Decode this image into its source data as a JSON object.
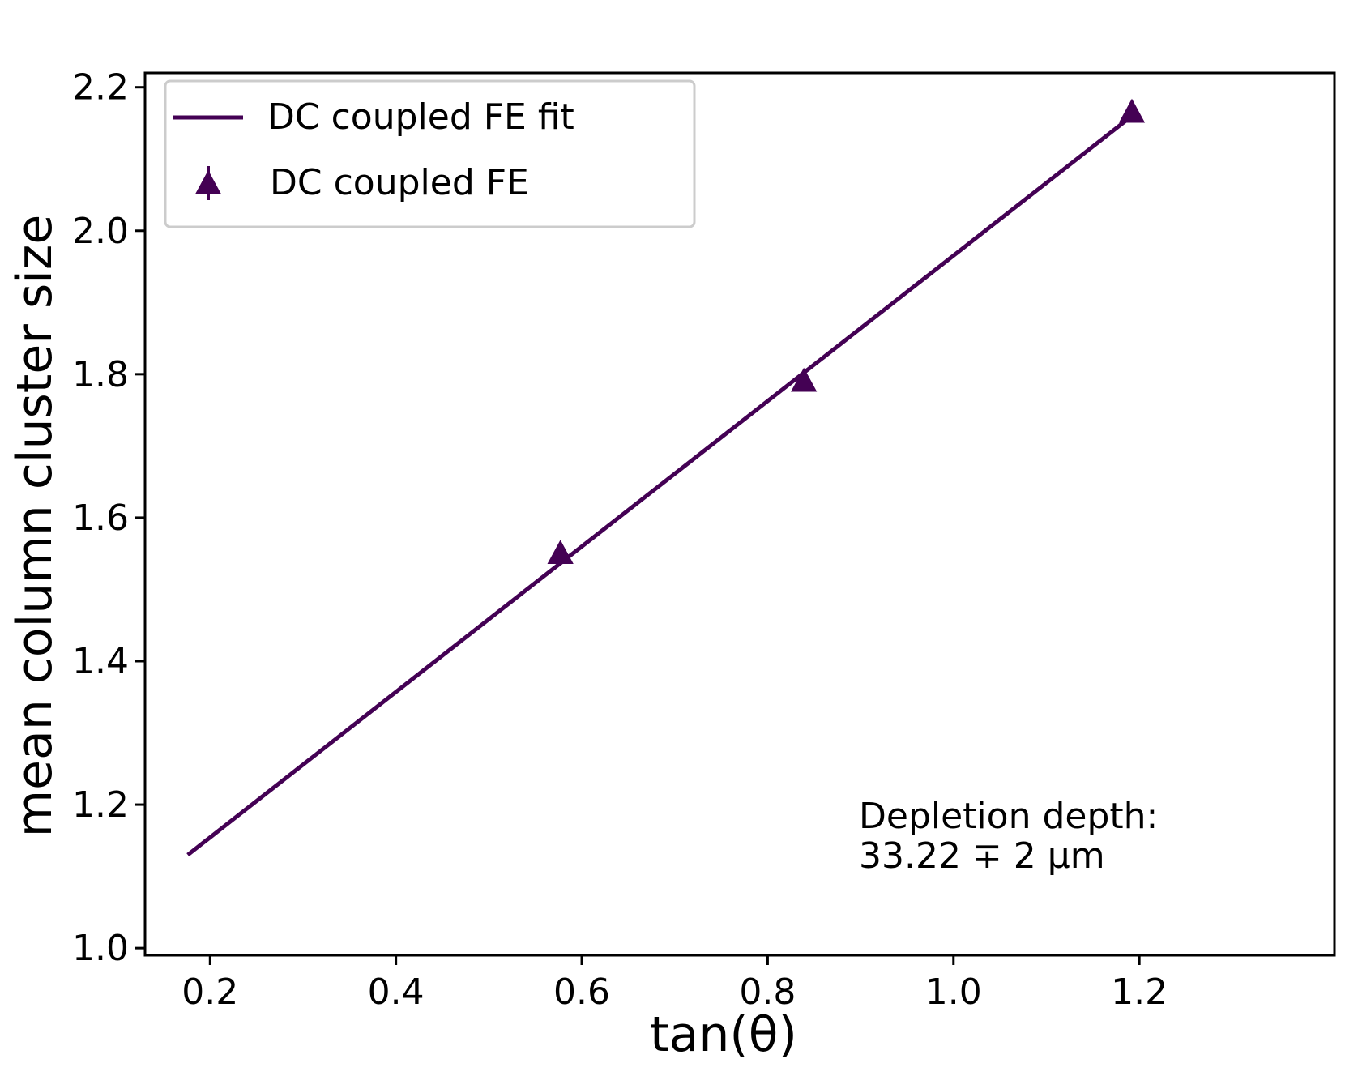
{
  "chart_data": {
    "type": "line",
    "title": "",
    "xlabel": "tan(θ)",
    "ylabel": "mean column cluster size",
    "xlim": [
      0.13,
      1.41
    ],
    "ylim": [
      0.99,
      2.22
    ],
    "x_ticks": [
      0.2,
      0.4,
      0.6,
      0.8,
      1.0,
      1.2
    ],
    "x_tick_labels": [
      "0.2",
      "0.4",
      "0.6",
      "0.8",
      "1.0",
      "1.2"
    ],
    "y_ticks": [
      1.0,
      1.2,
      1.4,
      1.6,
      1.8,
      2.0,
      2.2
    ],
    "y_tick_labels": [
      "1.0",
      "1.2",
      "1.4",
      "1.6",
      "1.8",
      "2.0",
      "2.2"
    ],
    "grid": false,
    "legend_position": "upper-left",
    "color": "#440154",
    "series": [
      {
        "name": "DC coupled FE fit",
        "kind": "line",
        "x": [
          0.176,
          1.192
        ],
        "y": [
          1.13,
          2.16
        ]
      },
      {
        "name": "DC coupled FE",
        "kind": "scatter",
        "marker": "triangle-up",
        "x": [
          0.577,
          0.839,
          1.192
        ],
        "y": [
          1.55,
          1.79,
          2.165
        ],
        "yerr": [
          0.005,
          0.012,
          0.005
        ]
      }
    ],
    "annotation": {
      "line1": "Depletion depth:",
      "line2": "33.22 ∓ 2 μm"
    }
  }
}
